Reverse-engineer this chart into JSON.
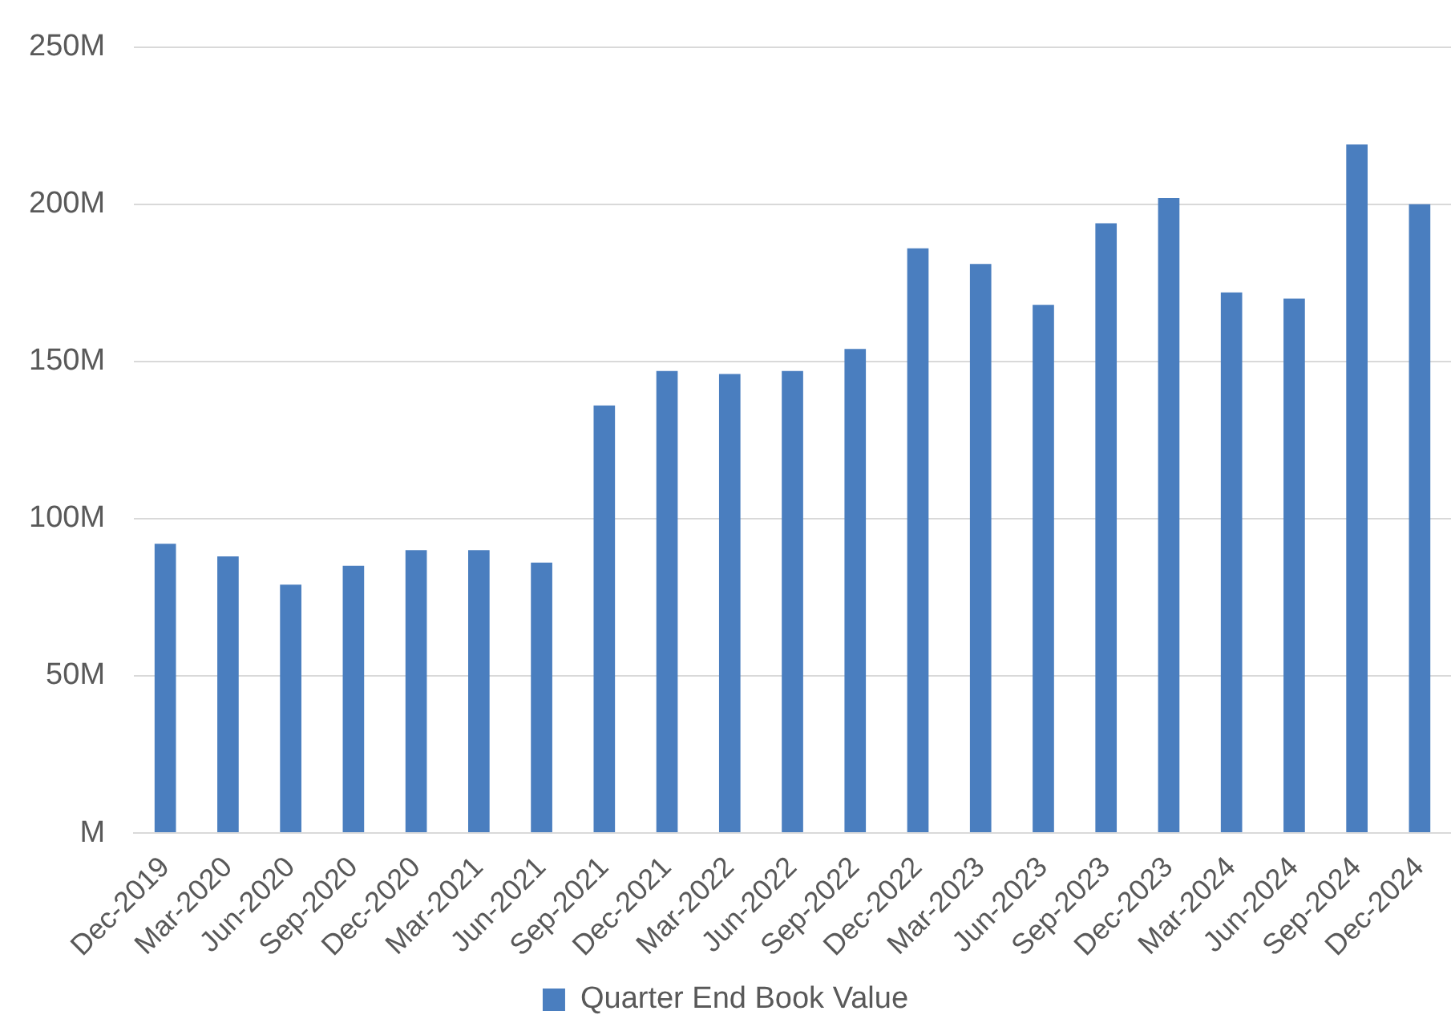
{
  "chart_data": {
    "type": "bar",
    "categories": [
      "Dec-2019",
      "Mar-2020",
      "Jun-2020",
      "Sep-2020",
      "Dec-2020",
      "Mar-2021",
      "Jun-2021",
      "Sep-2021",
      "Dec-2021",
      "Mar-2022",
      "Jun-2022",
      "Sep-2022",
      "Dec-2022",
      "Mar-2023",
      "Jun-2023",
      "Sep-2023",
      "Dec-2023",
      "Mar-2024",
      "Jun-2024",
      "Sep-2024",
      "Dec-2024"
    ],
    "series": [
      {
        "name": "Quarter End Book Value",
        "color": "#4a7ebf",
        "values": [
          92,
          88,
          79,
          85,
          90,
          90,
          86,
          136,
          147,
          146,
          147,
          154,
          186,
          181,
          168,
          194,
          202,
          172,
          170,
          219,
          200
        ]
      }
    ],
    "ylim": [
      0,
      250
    ],
    "yticks": [
      {
        "value": 0,
        "label": "M"
      },
      {
        "value": 50,
        "label": "50M"
      },
      {
        "value": 100,
        "label": "100M"
      },
      {
        "value": 150,
        "label": "150M"
      },
      {
        "value": 200,
        "label": "200M"
      },
      {
        "value": 250,
        "label": "250M"
      }
    ],
    "grid": "y",
    "legend": "bottom"
  }
}
